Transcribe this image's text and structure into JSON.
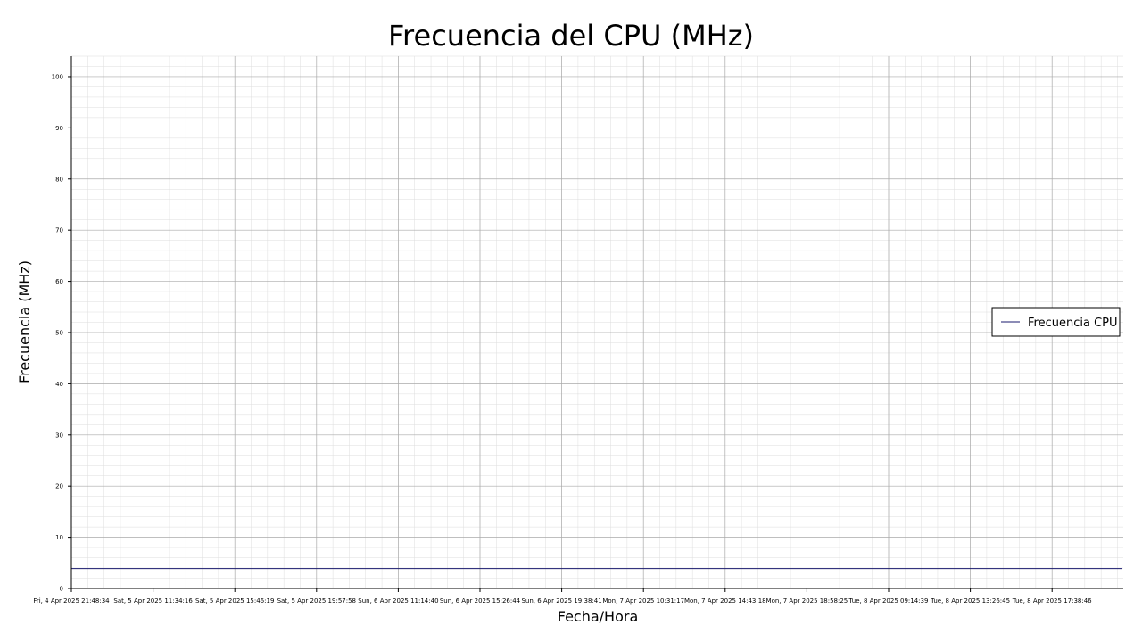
{
  "chart_data": {
    "type": "line",
    "title": "Frecuencia del CPU (MHz)",
    "xlabel": "Fecha/Hora",
    "ylabel": "Frecuencia (MHz)",
    "x_ticks": [
      "Fri, 4 Apr 2025 21:48:34",
      "Sat, 5 Apr 2025 11:34:16",
      "Sat, 5 Apr 2025 15:46:19",
      "Sat, 5 Apr 2025 19:57:58",
      "Sun, 6 Apr 2025 11:14:40",
      "Sun, 6 Apr 2025 15:26:44",
      "Sun, 6 Apr 2025 19:38:41",
      "Mon, 7 Apr 2025 10:31:17",
      "Mon, 7 Apr 2025 14:43:18",
      "Mon, 7 Apr 2025 18:58:25",
      "Tue, 8 Apr 2025 09:14:39",
      "Tue, 8 Apr 2025 13:26:45",
      "Tue, 8 Apr 2025 17:38:46"
    ],
    "y_ticks": [
      0,
      10,
      20,
      30,
      40,
      50,
      60,
      70,
      80,
      90,
      100
    ],
    "ylim": [
      0,
      104
    ],
    "grid": true,
    "minor_grid": true,
    "legend_position": "center-right",
    "series": [
      {
        "name": "Frecuencia CPU",
        "color": "#1a1a6e",
        "x": [
          "Fri, 4 Apr 2025 21:48:34",
          "Tue, 8 Apr 2025 17:38:46"
        ],
        "values": [
          3.9,
          3.9
        ]
      }
    ]
  }
}
